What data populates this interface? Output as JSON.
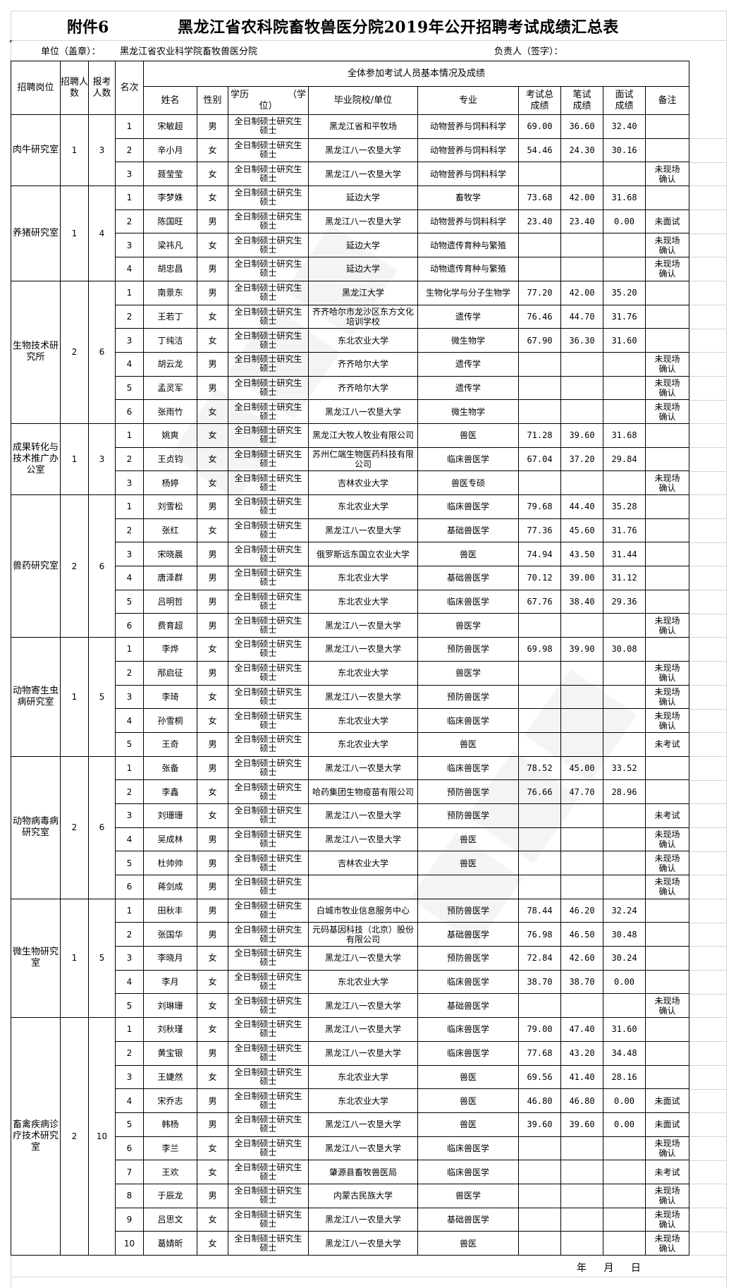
{
  "header": {
    "attachment": "附件6",
    "title": "黑龙江省农科院畜牧兽医分院2019年公开招聘考试成绩汇总表",
    "unit_label": "单位（盖章）：",
    "unit_value": "黑龙江省农业科学院畜牧兽医分院",
    "responsible_label": "负责人（签字）："
  },
  "columns": {
    "position": "招聘岗位",
    "hire_count": "招聘人数",
    "apply_count": "报考人数",
    "rank": "名次",
    "group_header": "全体参加考试人员基本情况及成绩",
    "name": "姓名",
    "gender": "性别",
    "education_a": "学历",
    "education_b": "（学",
    "education_c": "位）",
    "school": "毕业院校/单位",
    "major": "专业",
    "total": "考试总成绩",
    "written": "笔试成绩",
    "interview": "面试成绩",
    "remark": "备注"
  },
  "education_lines": [
    "全日制硕士研究生",
    "硕士"
  ],
  "groups": [
    {
      "position": "肉牛研究室",
      "hire": "1",
      "apply": "3",
      "rows": [
        [
          "1",
          "宋敏超",
          "男",
          "黑龙江省和平牧场",
          "动物营养与饲料科学",
          "69.00",
          "36.60",
          "32.40",
          ""
        ],
        [
          "2",
          "辛小月",
          "女",
          "黑龙江八一农垦大学",
          "动物营养与饲料科学",
          "54.46",
          "24.30",
          "30.16",
          ""
        ],
        [
          "3",
          "聂莹莹",
          "女",
          "黑龙江八一农垦大学",
          "动物营养与饲料科学",
          "",
          "",
          "",
          "未现场确认"
        ]
      ]
    },
    {
      "position": "养猪研究室",
      "hire": "1",
      "apply": "4",
      "rows": [
        [
          "1",
          "李梦姝",
          "女",
          "延边大学",
          "畜牧学",
          "73.68",
          "42.00",
          "31.68",
          ""
        ],
        [
          "2",
          "陈国旺",
          "男",
          "黑龙江八一农垦大学",
          "动物营养与饲料科学",
          "23.40",
          "23.40",
          "0.00",
          "未面试"
        ],
        [
          "3",
          "梁祎凡",
          "女",
          "延边大学",
          "动物遗传育种与繁殖",
          "",
          "",
          "",
          "未现场确认"
        ],
        [
          "4",
          "胡忠昌",
          "男",
          "延边大学",
          "动物遗传育种与繁殖",
          "",
          "",
          "",
          "未现场确认"
        ]
      ]
    },
    {
      "position": "生物技术研究所",
      "hire": "2",
      "apply": "6",
      "rows": [
        [
          "1",
          "南景东",
          "男",
          "黑龙江大学",
          "生物化学与分子生物学",
          "77.20",
          "42.00",
          "35.20",
          ""
        ],
        [
          "2",
          "王若丁",
          "女",
          "齐齐哈尔市龙沙区东方文化培训学校",
          "遗传学",
          "76.46",
          "44.70",
          "31.76",
          ""
        ],
        [
          "3",
          "丁纯洁",
          "女",
          "东北农业大学",
          "微生物学",
          "67.90",
          "36.30",
          "31.60",
          ""
        ],
        [
          "4",
          "胡云龙",
          "男",
          "齐齐哈尔大学",
          "遗传学",
          "",
          "",
          "",
          "未现场确认"
        ],
        [
          "5",
          "孟灵军",
          "男",
          "齐齐哈尔大学",
          "遗传学",
          "",
          "",
          "",
          "未现场确认"
        ],
        [
          "6",
          "张雨竹",
          "女",
          "黑龙江八一农垦大学",
          "微生物学",
          "",
          "",
          "",
          "未现场确认"
        ]
      ]
    },
    {
      "position": "成果转化与技术推广办公室",
      "hire": "1",
      "apply": "3",
      "rows": [
        [
          "1",
          "姚爽",
          "女",
          "黑龙江大牧人牧业有限公司",
          "兽医",
          "71.28",
          "39.60",
          "31.68",
          ""
        ],
        [
          "2",
          "王贞钧",
          "女",
          "苏州仁端生物医药科技有限公司",
          "临床兽医学",
          "67.04",
          "37.20",
          "29.84",
          ""
        ],
        [
          "3",
          "杨婷",
          "女",
          "吉林农业大学",
          "兽医专硕",
          "",
          "",
          "",
          "未现场确认"
        ]
      ]
    },
    {
      "position": "兽药研究室",
      "hire": "2",
      "apply": "6",
      "rows": [
        [
          "1",
          "刘雪松",
          "男",
          "东北农业大学",
          "临床兽医学",
          "79.68",
          "44.40",
          "35.28",
          ""
        ],
        [
          "2",
          "张红",
          "女",
          "黑龙江八一农垦大学",
          "基础兽医学",
          "77.36",
          "45.60",
          "31.76",
          ""
        ],
        [
          "3",
          "宋晓晨",
          "男",
          "俄罗斯远东国立农业大学",
          "兽医",
          "74.94",
          "43.50",
          "31.44",
          ""
        ],
        [
          "4",
          "唐泽群",
          "男",
          "东北农业大学",
          "基础兽医学",
          "70.12",
          "39.00",
          "31.12",
          ""
        ],
        [
          "5",
          "吕明哲",
          "男",
          "东北农业大学",
          "临床兽医学",
          "67.76",
          "38.40",
          "29.36",
          ""
        ],
        [
          "6",
          "费育超",
          "男",
          "黑龙江八一农垦大学",
          "兽医学",
          "",
          "",
          "",
          "未现场确认"
        ]
      ]
    },
    {
      "position": "动物寄生虫病研究室",
      "hire": "1",
      "apply": "5",
      "rows": [
        [
          "1",
          "李烨",
          "女",
          "黑龙江八一农垦大学",
          "预防兽医学",
          "69.98",
          "39.90",
          "30.08",
          ""
        ],
        [
          "2",
          "邴启征",
          "男",
          "东北农业大学",
          "兽医学",
          "",
          "",
          "",
          "未现场确认"
        ],
        [
          "3",
          "李琦",
          "女",
          "黑龙江八一农垦大学",
          "预防兽医学",
          "",
          "",
          "",
          "未现场确认"
        ],
        [
          "4",
          "孙雪桐",
          "女",
          "东北农业大学",
          "临床兽医学",
          "",
          "",
          "",
          "未现场确认"
        ],
        [
          "5",
          "王奇",
          "男",
          "东北农业大学",
          "兽医",
          "",
          "",
          "",
          "未考试"
        ]
      ]
    },
    {
      "position": "动物病毒病研究室",
      "hire": "2",
      "apply": "6",
      "rows": [
        [
          "1",
          "张备",
          "男",
          "黑龙江八一农垦大学",
          "临床兽医学",
          "78.52",
          "45.00",
          "33.52",
          ""
        ],
        [
          "2",
          "李鑫",
          "女",
          "哈药集团生物疫苗有限公司",
          "预防兽医学",
          "76.66",
          "47.70",
          "28.96",
          ""
        ],
        [
          "3",
          "刘珊珊",
          "女",
          "黑龙江八一农垦大学",
          "预防兽医学",
          "",
          "",
          "",
          "未考试"
        ],
        [
          "4",
          "吴成林",
          "男",
          "黑龙江八一农垦大学",
          "兽医",
          "",
          "",
          "",
          "未现场确认"
        ],
        [
          "5",
          "杜帅帅",
          "男",
          "吉林农业大学",
          "兽医",
          "",
          "",
          "",
          "未现场确认"
        ],
        [
          "6",
          "蒋剑成",
          "男",
          "",
          "",
          "",
          "",
          "",
          "未现场确认"
        ]
      ]
    },
    {
      "position": "微生物研究室",
      "hire": "1",
      "apply": "5",
      "rows": [
        [
          "1",
          "田秋丰",
          "男",
          "白城市牧业信息服务中心",
          "预防兽医学",
          "78.44",
          "46.20",
          "32.24",
          ""
        ],
        [
          "2",
          "张国华",
          "男",
          "元码基因科技（北京）股份有限公司",
          "基础兽医学",
          "76.98",
          "46.50",
          "30.48",
          ""
        ],
        [
          "3",
          "李晓月",
          "女",
          "黑龙江八一农垦大学",
          "预防兽医学",
          "72.84",
          "42.60",
          "30.24",
          ""
        ],
        [
          "4",
          "李月",
          "女",
          "东北农业大学",
          "临床兽医学",
          "38.70",
          "38.70",
          "0.00",
          ""
        ],
        [
          "5",
          "刘琳珊",
          "女",
          "黑龙江八一农垦大学",
          "基础兽医学",
          "",
          "",
          "",
          "未现场确认"
        ]
      ]
    },
    {
      "position": "畜禽疾病诊疗技术研究室",
      "hire": "2",
      "apply": "10",
      "rows": [
        [
          "1",
          "刘秋瑾",
          "女",
          "黑龙江八一农垦大学",
          "临床兽医学",
          "79.00",
          "47.40",
          "31.60",
          ""
        ],
        [
          "2",
          "黄宝银",
          "男",
          "黑龙江八一农垦大学",
          "临床兽医学",
          "77.68",
          "43.20",
          "34.48",
          ""
        ],
        [
          "3",
          "王婕然",
          "女",
          "东北农业大学",
          "兽医",
          "69.56",
          "41.40",
          "28.16",
          ""
        ],
        [
          "4",
          "宋乔志",
          "男",
          "东北农业大学",
          "兽医",
          "46.80",
          "46.80",
          "0.00",
          "未面试"
        ],
        [
          "5",
          "韩杨",
          "男",
          "黑龙江八一农垦大学",
          "兽医",
          "39.60",
          "39.60",
          "0.00",
          "未面试"
        ],
        [
          "6",
          "李兰",
          "女",
          "黑龙江八一农垦大学",
          "临床兽医学",
          "",
          "",
          "",
          "未现场确认"
        ],
        [
          "7",
          "王欢",
          "女",
          "肇源县畜牧兽医局",
          "临床兽医学",
          "",
          "",
          "",
          "未考试"
        ],
        [
          "8",
          "于辰龙",
          "男",
          "内蒙古民族大学",
          "兽医学",
          "",
          "",
          "",
          "未现场确认"
        ],
        [
          "9",
          "吕思文",
          "女",
          "黑龙江八一农垦大学",
          "基础兽医学",
          "",
          "",
          "",
          "未现场确认"
        ],
        [
          "10",
          "葛婧昕",
          "女",
          "黑龙江八一农垦大学",
          "兽医",
          "",
          "",
          "",
          "未现场确认"
        ]
      ]
    }
  ],
  "footer": {
    "date": "年 月 日"
  }
}
